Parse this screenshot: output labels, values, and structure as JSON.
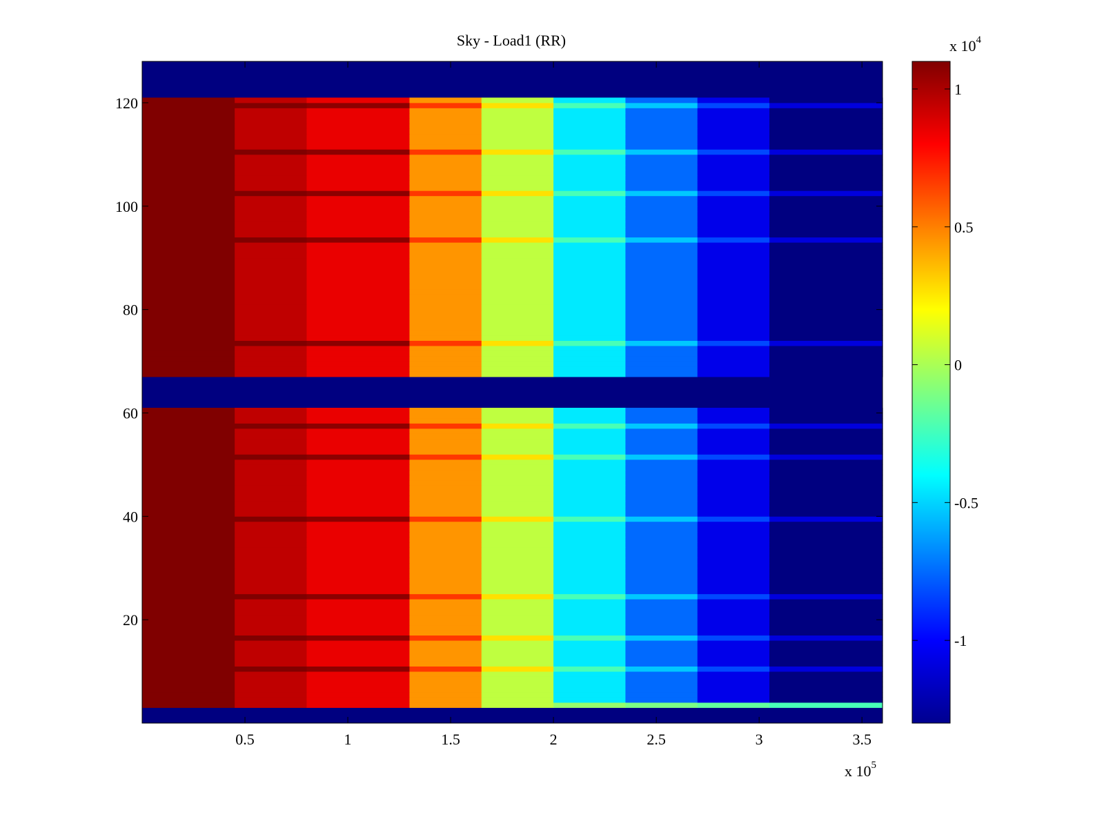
{
  "chart_data": {
    "type": "heatmap",
    "title": "Sky - Load1 (RR)",
    "xlabel": "",
    "ylabel": "",
    "x_exponent_label": {
      "base": "x 10",
      "exp": "5"
    },
    "color_exponent_label": {
      "base": "x 10",
      "exp": "4"
    },
    "xlim": [
      0,
      3.6
    ],
    "ylim": [
      0,
      128
    ],
    "clim": [
      -1.3,
      1.1
    ],
    "colormap": "jet",
    "grid": false,
    "x_ticks": [
      {
        "value": 0.5,
        "label": "0.5"
      },
      {
        "value": 1,
        "label": "1"
      },
      {
        "value": 1.5,
        "label": "1.5"
      },
      {
        "value": 2,
        "label": "2"
      },
      {
        "value": 2.5,
        "label": "2.5"
      },
      {
        "value": 3,
        "label": "3"
      },
      {
        "value": 3.5,
        "label": "3.5"
      }
    ],
    "y_ticks": [
      {
        "value": 20,
        "label": "20"
      },
      {
        "value": 40,
        "label": "40"
      },
      {
        "value": 60,
        "label": "60"
      },
      {
        "value": 80,
        "label": "80"
      },
      {
        "value": 100,
        "label": "100"
      },
      {
        "value": 120,
        "label": "120"
      }
    ],
    "color_ticks": [
      {
        "value": 1,
        "label": "1"
      },
      {
        "value": 0.5,
        "label": "0.5"
      },
      {
        "value": 0,
        "label": "0"
      },
      {
        "value": -0.5,
        "label": "-0.5"
      },
      {
        "value": -1,
        "label": "-1"
      }
    ],
    "empty_row_bands": [
      [
        0,
        3
      ],
      [
        61,
        67
      ],
      [
        121,
        128
      ]
    ],
    "full_width_rows": [
      [
        3,
        4
      ]
    ],
    "column_bands": [
      {
        "x": [
          0,
          0.45
        ],
        "value": 1.1
      },
      {
        "x": [
          0.45,
          0.8
        ],
        "value": 0.95
      },
      {
        "x": [
          0.8,
          1.3
        ],
        "value": 0.85
      },
      {
        "x": [
          1.3,
          1.65
        ],
        "value": 0.45
      },
      {
        "x": [
          1.65,
          2.0
        ],
        "value": 0.05
      },
      {
        "x": [
          2.0,
          2.35
        ],
        "value": -0.45
      },
      {
        "x": [
          2.35,
          2.7
        ],
        "value": -0.75
      },
      {
        "x": [
          2.7,
          3.05
        ],
        "value": -1.05
      },
      {
        "x": [
          3.05,
          3.6
        ],
        "value": -1.3
      }
    ],
    "bright_rows": [
      10,
      16,
      24,
      39,
      51,
      57,
      73,
      93,
      102,
      110,
      119
    ]
  }
}
